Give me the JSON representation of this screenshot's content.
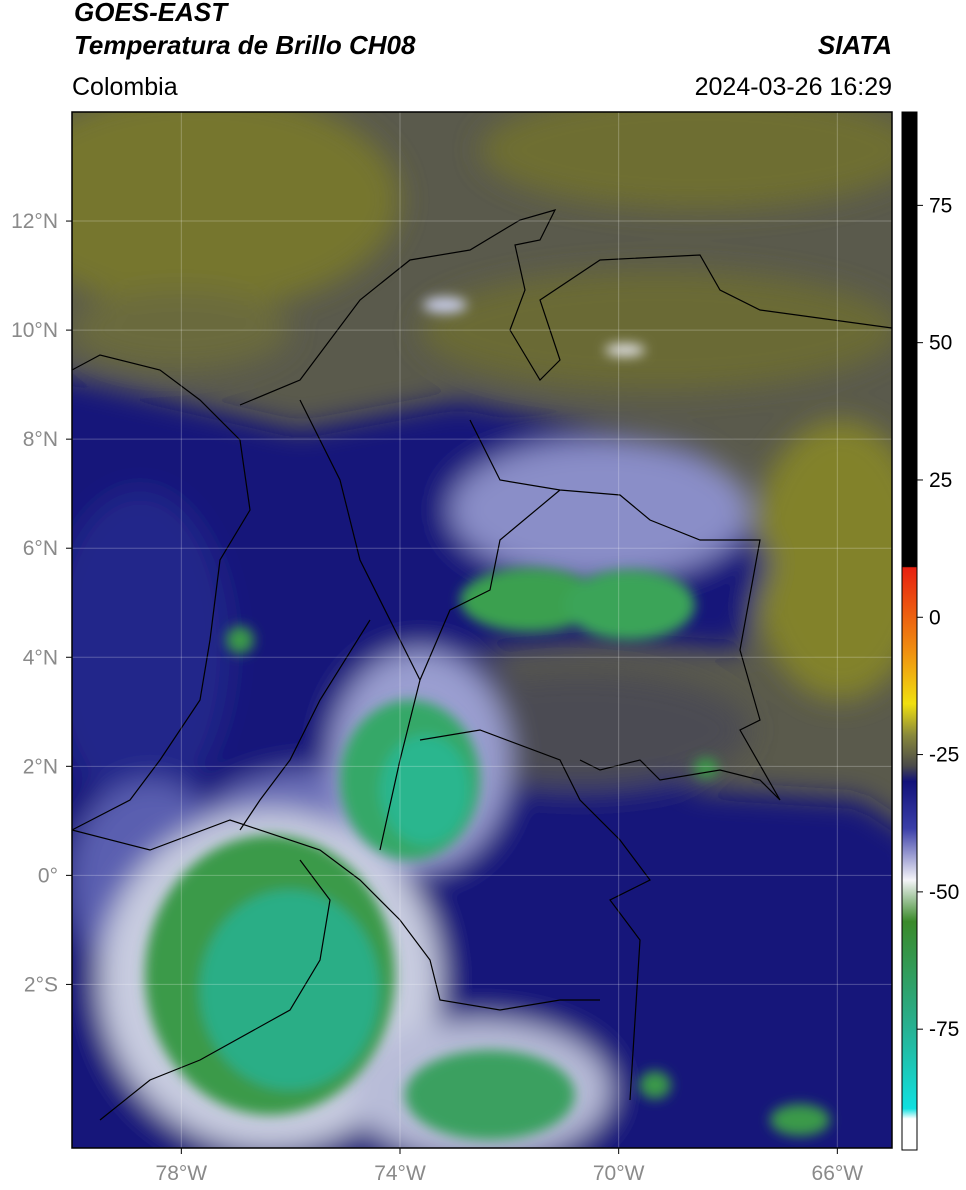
{
  "header": {
    "title": "GOES-EAST",
    "subtitle": "Temperatura de Brillo CH08",
    "region": "Colombia",
    "source": "SIATA",
    "timestamp": "2024-03-26 16:29"
  },
  "map": {
    "xlim": [
      -80,
      -65
    ],
    "ylim": [
      -5,
      14
    ],
    "xticks": [
      {
        "value": -78,
        "label": "78°W"
      },
      {
        "value": -74,
        "label": "74°W"
      },
      {
        "value": -70,
        "label": "70°W"
      },
      {
        "value": -66,
        "label": "66°W"
      }
    ],
    "yticks": [
      {
        "value": 12,
        "label": "12°N"
      },
      {
        "value": 10,
        "label": "10°N"
      },
      {
        "value": 8,
        "label": "8°N"
      },
      {
        "value": 6,
        "label": "6°N"
      },
      {
        "value": 4,
        "label": "4°N"
      },
      {
        "value": 2,
        "label": "2°N"
      },
      {
        "value": 0,
        "label": "0°"
      },
      {
        "value": -2,
        "label": "2°S"
      }
    ],
    "grid": true
  },
  "colorbar": {
    "lim": [
      -97,
      92
    ],
    "ticks": [
      75,
      50,
      25,
      0,
      -25,
      -50,
      -75
    ]
  }
}
